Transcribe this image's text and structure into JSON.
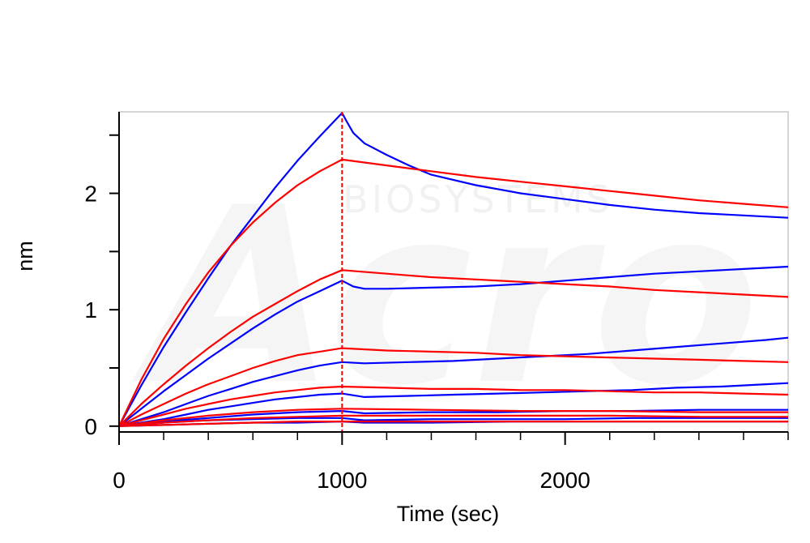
{
  "chart_data": {
    "type": "line",
    "xlabel": "Time (sec)",
    "ylabel": "nm",
    "xlim": [
      0,
      3000
    ],
    "ylim": [
      -0.05,
      2.7
    ],
    "x_major_ticks": [
      0,
      1000,
      2000
    ],
    "x_tick_labels": [
      "0",
      "1000",
      "2000"
    ],
    "x_minor_step": 200,
    "y_major_ticks": [
      0,
      1,
      2
    ],
    "y_tick_labels": [
      "0",
      "1",
      "2"
    ],
    "y_minor_step": 0.5,
    "grid": false,
    "legend": "none",
    "annotations": [
      {
        "type": "vertical-dashed-line",
        "x": 1000,
        "color": "#ff0000"
      }
    ],
    "watermark": "Acro BIOSYSTEMS",
    "series_colors": {
      "measured": "#0000ff",
      "fit": "#ff0000"
    },
    "series": [
      {
        "role": "measured",
        "color": "#0000ff",
        "x": [
          0,
          100,
          200,
          300,
          400,
          500,
          600,
          700,
          800,
          900,
          1000,
          1020,
          1050,
          1100,
          1200,
          1300,
          1400,
          1600,
          1800,
          2000,
          2200,
          2400,
          2600,
          2800,
          3000
        ],
        "y": [
          0,
          0.35,
          0.68,
          0.98,
          1.27,
          1.55,
          1.8,
          2.05,
          2.28,
          2.49,
          2.69,
          2.62,
          2.52,
          2.43,
          2.33,
          2.24,
          2.16,
          2.07,
          2.0,
          1.95,
          1.9,
          1.86,
          1.83,
          1.81,
          1.79
        ]
      },
      {
        "role": "fit",
        "color": "#ff0000",
        "x": [
          0,
          100,
          200,
          300,
          400,
          500,
          600,
          700,
          800,
          900,
          1000,
          1200,
          1400,
          1600,
          1800,
          2000,
          2200,
          2400,
          2600,
          2800,
          3000
        ],
        "y": [
          0,
          0.4,
          0.75,
          1.05,
          1.32,
          1.55,
          1.75,
          1.92,
          2.07,
          2.19,
          2.29,
          2.24,
          2.19,
          2.14,
          2.1,
          2.06,
          2.02,
          1.98,
          1.94,
          1.91,
          1.88
        ]
      },
      {
        "role": "measured",
        "color": "#0000ff",
        "x": [
          0,
          100,
          200,
          300,
          400,
          500,
          600,
          700,
          800,
          900,
          1000,
          1050,
          1100,
          1200,
          1400,
          1600,
          1800,
          2000,
          2200,
          2400,
          2600,
          2800,
          3000
        ],
        "y": [
          0,
          0.15,
          0.3,
          0.44,
          0.58,
          0.71,
          0.84,
          0.96,
          1.07,
          1.16,
          1.25,
          1.2,
          1.18,
          1.18,
          1.19,
          1.2,
          1.22,
          1.25,
          1.28,
          1.31,
          1.33,
          1.35,
          1.37
        ]
      },
      {
        "role": "fit",
        "color": "#ff0000",
        "x": [
          0,
          100,
          200,
          300,
          400,
          500,
          600,
          700,
          800,
          900,
          1000,
          1200,
          1400,
          1600,
          1800,
          2000,
          2200,
          2400,
          2600,
          2800,
          3000
        ],
        "y": [
          0,
          0.19,
          0.36,
          0.52,
          0.67,
          0.81,
          0.94,
          1.05,
          1.16,
          1.26,
          1.34,
          1.31,
          1.28,
          1.26,
          1.24,
          1.22,
          1.2,
          1.17,
          1.15,
          1.13,
          1.11
        ]
      },
      {
        "role": "measured",
        "color": "#0000ff",
        "x": [
          0,
          100,
          200,
          300,
          400,
          500,
          600,
          700,
          800,
          900,
          1000,
          1100,
          1300,
          1500,
          1700,
          1900,
          2100,
          2300,
          2500,
          2700,
          2900,
          3000
        ],
        "y": [
          0,
          0.06,
          0.12,
          0.19,
          0.26,
          0.32,
          0.38,
          0.43,
          0.48,
          0.52,
          0.55,
          0.54,
          0.55,
          0.56,
          0.58,
          0.6,
          0.62,
          0.65,
          0.68,
          0.71,
          0.74,
          0.76
        ]
      },
      {
        "role": "fit",
        "color": "#ff0000",
        "x": [
          0,
          100,
          200,
          300,
          400,
          500,
          600,
          700,
          800,
          900,
          1000,
          1200,
          1400,
          1600,
          1800,
          2000,
          2200,
          2400,
          2600,
          2800,
          3000
        ],
        "y": [
          0,
          0.1,
          0.19,
          0.28,
          0.36,
          0.43,
          0.5,
          0.56,
          0.61,
          0.64,
          0.67,
          0.65,
          0.64,
          0.63,
          0.61,
          0.6,
          0.59,
          0.58,
          0.57,
          0.56,
          0.55
        ]
      },
      {
        "role": "measured",
        "color": "#0000ff",
        "x": [
          0,
          100,
          200,
          300,
          400,
          500,
          600,
          700,
          800,
          900,
          1000,
          1100,
          1300,
          1500,
          1700,
          1900,
          2100,
          2300,
          2500,
          2700,
          2900,
          3000
        ],
        "y": [
          0,
          0.03,
          0.06,
          0.1,
          0.14,
          0.17,
          0.2,
          0.23,
          0.25,
          0.27,
          0.28,
          0.25,
          0.26,
          0.27,
          0.28,
          0.29,
          0.3,
          0.31,
          0.33,
          0.34,
          0.36,
          0.37
        ]
      },
      {
        "role": "fit",
        "color": "#ff0000",
        "x": [
          0,
          100,
          200,
          300,
          400,
          500,
          600,
          700,
          800,
          900,
          1000,
          1200,
          1400,
          1600,
          1800,
          2000,
          2200,
          2400,
          2600,
          2800,
          3000
        ],
        "y": [
          0,
          0.05,
          0.1,
          0.15,
          0.19,
          0.23,
          0.26,
          0.29,
          0.31,
          0.33,
          0.34,
          0.33,
          0.32,
          0.32,
          0.31,
          0.31,
          0.3,
          0.29,
          0.29,
          0.28,
          0.27
        ]
      },
      {
        "role": "measured",
        "color": "#0000ff",
        "x": [
          0,
          200,
          400,
          600,
          800,
          1000,
          1100,
          1400,
          1700,
          2000,
          2300,
          2600,
          3000
        ],
        "y": [
          0,
          0.04,
          0.07,
          0.1,
          0.12,
          0.13,
          0.11,
          0.12,
          0.12,
          0.13,
          0.13,
          0.14,
          0.14
        ]
      },
      {
        "role": "fit",
        "color": "#ff0000",
        "x": [
          0,
          200,
          400,
          600,
          800,
          1000,
          1400,
          1800,
          2200,
          2600,
          3000
        ],
        "y": [
          0,
          0.05,
          0.09,
          0.12,
          0.14,
          0.15,
          0.14,
          0.13,
          0.13,
          0.12,
          0.12
        ]
      },
      {
        "role": "measured",
        "color": "#0000ff",
        "x": [
          0,
          200,
          400,
          600,
          800,
          1000,
          1100,
          1400,
          1700,
          2000,
          2300,
          2600,
          3000
        ],
        "y": [
          0,
          0.03,
          0.05,
          0.06,
          0.07,
          0.07,
          0.05,
          0.06,
          0.06,
          0.06,
          0.07,
          0.07,
          0.07
        ]
      },
      {
        "role": "fit",
        "color": "#ff0000",
        "x": [
          0,
          200,
          400,
          600,
          800,
          1000,
          1400,
          1800,
          2200,
          2600,
          3000
        ],
        "y": [
          0,
          0.03,
          0.05,
          0.07,
          0.08,
          0.09,
          0.09,
          0.09,
          0.09,
          0.08,
          0.08
        ]
      },
      {
        "role": "measured",
        "color": "#0000ff",
        "x": [
          0,
          200,
          400,
          600,
          800,
          1000,
          1100,
          1400,
          1800,
          2200,
          2600,
          3000
        ],
        "y": [
          0,
          0.01,
          0.02,
          0.03,
          0.03,
          0.04,
          0.03,
          0.03,
          0.04,
          0.04,
          0.04,
          0.04
        ]
      },
      {
        "role": "fit",
        "color": "#ff0000",
        "x": [
          0,
          200,
          400,
          600,
          800,
          1000,
          1400,
          1800,
          2200,
          2600,
          3000
        ],
        "y": [
          0,
          0.01,
          0.02,
          0.03,
          0.04,
          0.04,
          0.04,
          0.04,
          0.04,
          0.04,
          0.04
        ]
      }
    ]
  }
}
